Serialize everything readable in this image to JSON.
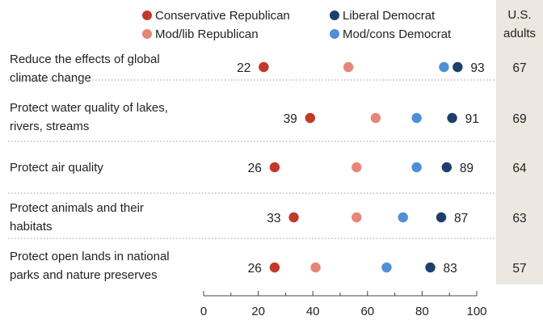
{
  "chart_data": {
    "type": "dot",
    "legend": [
      {
        "label": "Conservative Republican",
        "color": "#c0392b"
      },
      {
        "label": "Mod/lib Republican",
        "color": "#e8857a"
      },
      {
        "label": "Liberal Democrat",
        "color": "#1f3e6b"
      },
      {
        "label": "Mod/cons Democrat",
        "color": "#4f8fd6"
      }
    ],
    "total_header": [
      "U.S.",
      "adults"
    ],
    "total_column_color": "#ece7df",
    "categories": [
      {
        "label": [
          "Reduce the effects of global",
          "climate change"
        ],
        "values": {
          "conservative_republican": 22,
          "mod_lib_republican": 53,
          "mod_cons_democrat": 88,
          "liberal_democrat": 93
        },
        "total": 67
      },
      {
        "label": [
          "Protect water quality of lakes,",
          "rivers, streams"
        ],
        "values": {
          "conservative_republican": 39,
          "mod_lib_republican": 63,
          "mod_cons_democrat": 78,
          "liberal_democrat": 91
        },
        "total": 69
      },
      {
        "label": [
          "Protect air quality"
        ],
        "values": {
          "conservative_republican": 26,
          "mod_lib_republican": 56,
          "mod_cons_democrat": 78,
          "liberal_democrat": 89
        },
        "total": 64
      },
      {
        "label": [
          "Protect animals and their",
          "habitats"
        ],
        "values": {
          "conservative_republican": 33,
          "mod_lib_republican": 56,
          "mod_cons_democrat": 73,
          "liberal_democrat": 87
        },
        "total": 63
      },
      {
        "label": [
          "Protect open lands in national",
          "parks and nature preserves"
        ],
        "values": {
          "conservative_republican": 26,
          "mod_lib_republican": 41,
          "mod_cons_democrat": 67,
          "liberal_democrat": 83
        },
        "total": 57
      }
    ],
    "labeled_series": [
      "conservative_republican",
      "liberal_democrat"
    ],
    "xlim": [
      0,
      100
    ],
    "xticks": [
      0,
      20,
      40,
      60,
      80,
      100
    ]
  }
}
